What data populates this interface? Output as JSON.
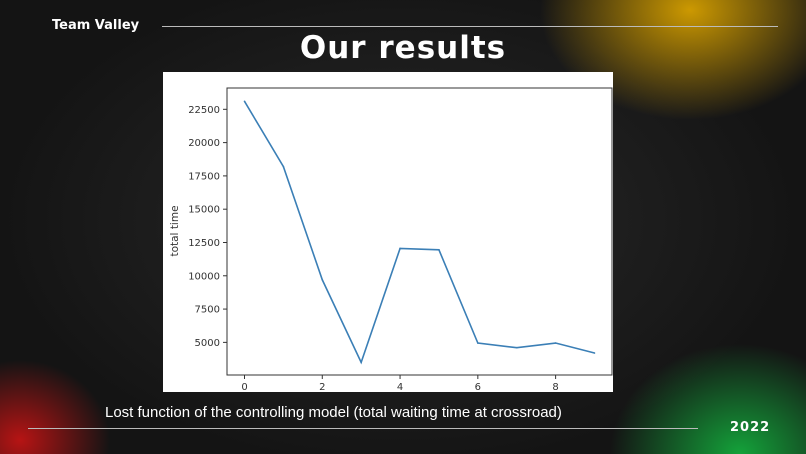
{
  "slide": {
    "team": "Team Valley",
    "title": "Our results",
    "caption": "Lost function of the controlling model (total waiting time at crossroad)",
    "year": "2022"
  },
  "colors": {
    "line": "#3b7fb6",
    "accent_top": "#d6a000",
    "accent_bottom_right": "#14aa3c",
    "accent_bottom_left": "#c81414"
  },
  "chart_data": {
    "type": "line",
    "title": "",
    "xlabel": "",
    "ylabel": "total time",
    "x": [
      0,
      1,
      2,
      3,
      4,
      5,
      6,
      7,
      8,
      9
    ],
    "series": [
      {
        "values": [
          23100,
          18200,
          9700,
          3500,
          12050,
          11950,
          4950,
          4600,
          4950,
          4200
        ]
      }
    ],
    "xlim": [
      -0.45,
      9.45
    ],
    "ylim": [
      2550,
      24100
    ],
    "xticks": [
      "0",
      "2",
      "4",
      "6",
      "8"
    ],
    "yticks": [
      "5000",
      "7500",
      "10000",
      "12500",
      "15000",
      "17500",
      "20000",
      "22500"
    ],
    "grid": false
  }
}
